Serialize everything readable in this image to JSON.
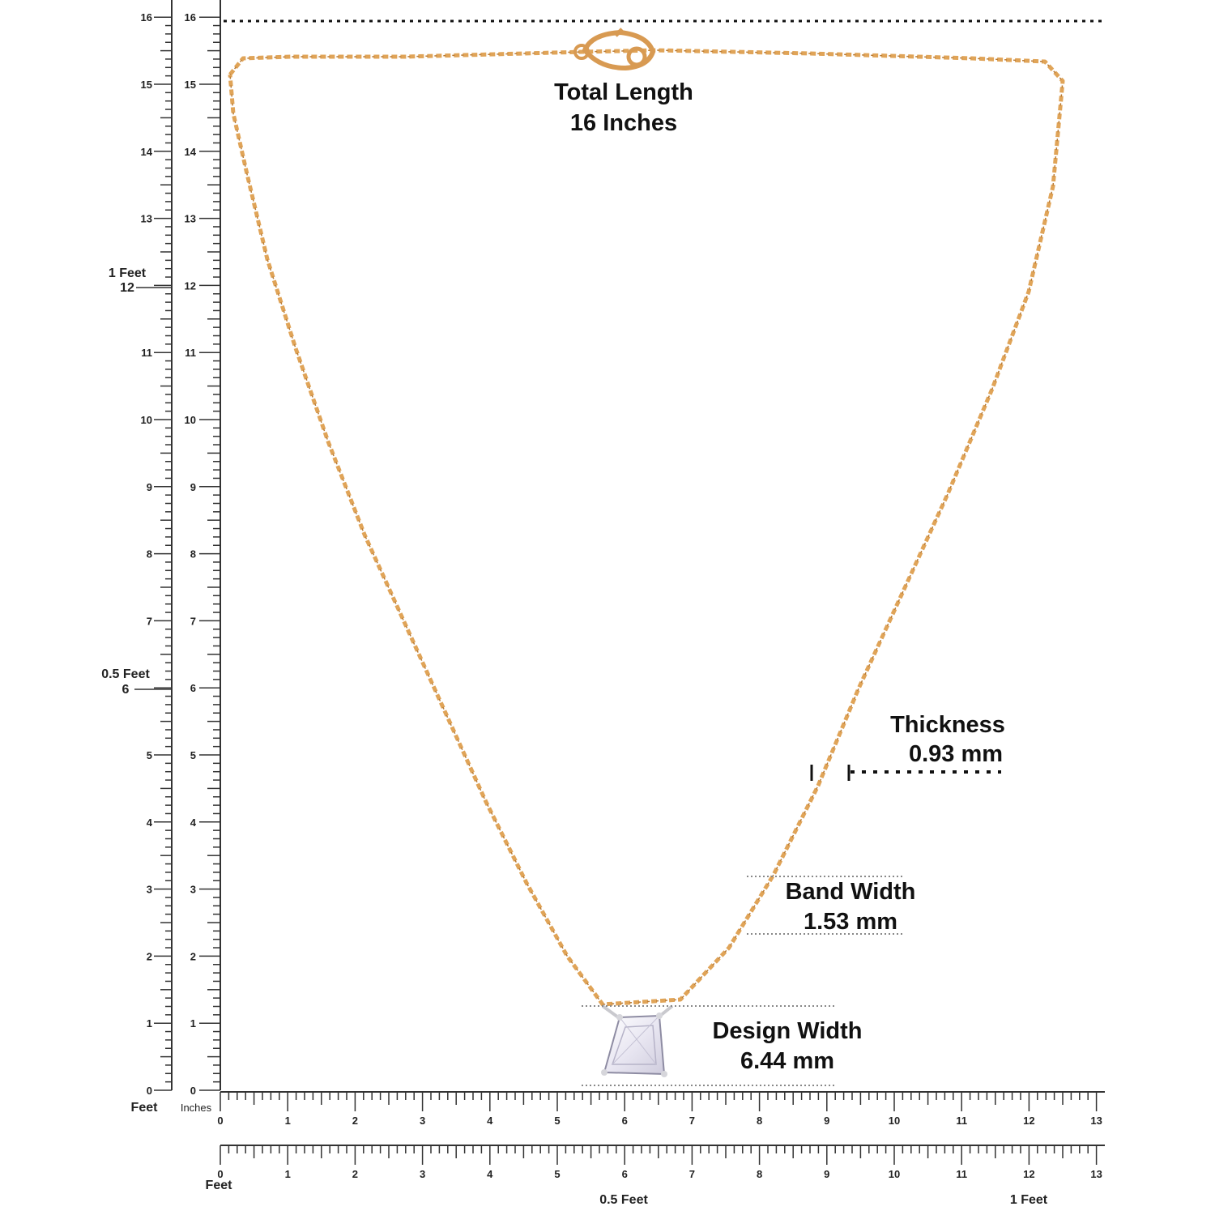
{
  "colors": {
    "chain": "#E0A458",
    "chain_dark": "#B97A32",
    "ruler": "#333333",
    "text": "#111111",
    "stone_fill": "#F3F1F8",
    "stone_edge": "#8E8CA3",
    "metal": "#C9C9CE"
  },
  "labels": {
    "total_length_title": "Total Length",
    "total_length_value": "16 Inches",
    "thickness_title": "Thickness",
    "thickness_value": "0.93 mm",
    "band_width_title": "Band Width",
    "band_width_value": "1.53 mm",
    "design_width_title": "Design Width",
    "design_width_value": "6.44 mm"
  },
  "rulers": {
    "left_feet": {
      "ticks": [
        "0",
        "1",
        "2",
        "3",
        "4",
        "5",
        "6",
        "7",
        "8",
        "9",
        "10",
        "11",
        "12",
        "13",
        "14",
        "15",
        "16"
      ],
      "marker_half": "0.5 Feet",
      "marker_half_value": "6",
      "marker_one": "1 Feet",
      "marker_one_value": "12",
      "unit": "Feet"
    },
    "left_inches": {
      "ticks": [
        "0",
        "1",
        "2",
        "3",
        "4",
        "5",
        "6",
        "7",
        "8",
        "9",
        "10",
        "11",
        "12",
        "13",
        "14",
        "15",
        "16"
      ],
      "unit": "Inches"
    },
    "bottom_inches": {
      "ticks": [
        "0",
        "1",
        "2",
        "3",
        "4",
        "5",
        "6",
        "7",
        "8",
        "9",
        "10",
        "11",
        "12",
        "13"
      ]
    },
    "bottom_feet": {
      "ticks": [
        "0",
        "1",
        "2",
        "3",
        "4",
        "5",
        "6",
        "7",
        "8",
        "9",
        "10",
        "11",
        "12",
        "13"
      ],
      "unit": "Feet",
      "marker_half": "0.5 Feet",
      "marker_one": "1 Feet"
    }
  },
  "measurements": {
    "total_length_in": 16,
    "thickness_mm": 0.93,
    "band_width_mm": 1.53,
    "design_width_mm": 6.44
  }
}
